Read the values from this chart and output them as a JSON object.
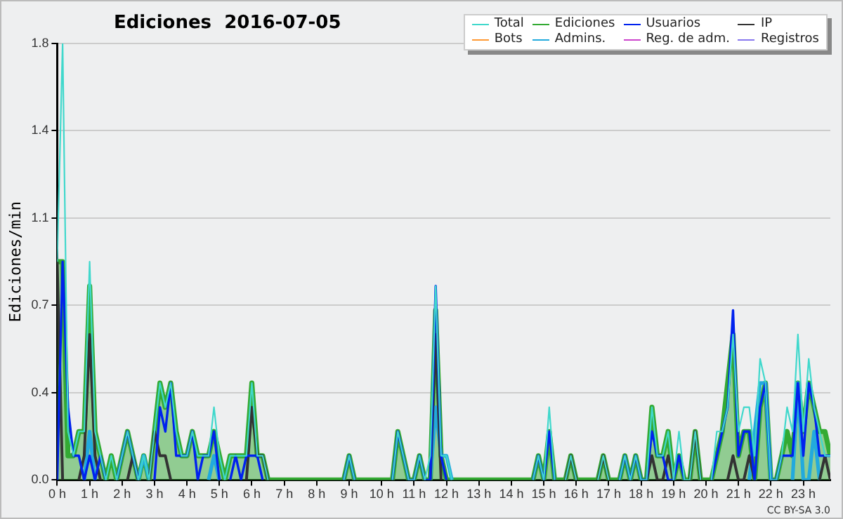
{
  "chart_data": {
    "type": "line",
    "title": "Ediciones  2016-07-05",
    "ylabel": "Ediciones/min",
    "annotations": [
      "CC BY-SA 3.0"
    ],
    "x": [
      0,
      0.167,
      0.333,
      0.5,
      0.667,
      0.833,
      1,
      1.167,
      1.333,
      1.5,
      1.667,
      1.833,
      2,
      2.167,
      2.333,
      2.5,
      2.667,
      2.833,
      3,
      3.167,
      3.333,
      3.5,
      3.667,
      3.833,
      4,
      4.167,
      4.333,
      4.5,
      4.667,
      4.833,
      5,
      5.167,
      5.333,
      5.5,
      5.667,
      5.833,
      6,
      6.167,
      6.333,
      6.5,
      6.667,
      6.833,
      7,
      7.167,
      7.333,
      7.5,
      7.667,
      7.833,
      8,
      8.167,
      8.333,
      8.5,
      8.667,
      8.833,
      9,
      9.167,
      9.333,
      9.5,
      9.667,
      9.833,
      10,
      10.167,
      10.333,
      10.5,
      10.667,
      10.833,
      11,
      11.167,
      11.333,
      11.5,
      11.667,
      11.833,
      12,
      12.167,
      12.333,
      12.5,
      12.667,
      12.833,
      13,
      13.167,
      13.333,
      13.5,
      13.667,
      13.833,
      14,
      14.167,
      14.333,
      14.5,
      14.667,
      14.833,
      15,
      15.167,
      15.333,
      15.5,
      15.667,
      15.833,
      16,
      16.167,
      16.333,
      16.5,
      16.667,
      16.833,
      17,
      17.167,
      17.333,
      17.5,
      17.667,
      17.833,
      18,
      18.167,
      18.333,
      18.5,
      18.667,
      18.833,
      19,
      19.167,
      19.333,
      19.5,
      19.667,
      19.833,
      20,
      20.167,
      20.333,
      20.5,
      20.667,
      20.833,
      21,
      21.167,
      21.333,
      21.5,
      21.667,
      21.833,
      22,
      22.167,
      22.333,
      22.5,
      22.667,
      22.833,
      23,
      23.167,
      23.333,
      23.5,
      23.667,
      23.833
    ],
    "series": [
      {
        "name": "Total",
        "color": "#40d8cc",
        "values": [
          0.9,
          1.8,
          0.2,
          0.1,
          0.2,
          0.2,
          0.9,
          0.2,
          0.1,
          0,
          0.1,
          0,
          0.1,
          0.2,
          0.1,
          0,
          0.1,
          0,
          0.2,
          0.4,
          0.3,
          0.4,
          0.2,
          0.1,
          0.1,
          0.2,
          0.1,
          0.1,
          0.1,
          0.3,
          0.1,
          0,
          0.1,
          0.1,
          0.1,
          0.1,
          0.4,
          0.1,
          0.1,
          0,
          null,
          null,
          null,
          null,
          null,
          null,
          null,
          null,
          null,
          null,
          null,
          null,
          null,
          0,
          0.1,
          0,
          null,
          null,
          null,
          null,
          null,
          null,
          0,
          0.2,
          0.1,
          0,
          0,
          0.1,
          0,
          0.1,
          0.8,
          0.1,
          0.1,
          0,
          null,
          null,
          null,
          null,
          null,
          null,
          null,
          null,
          null,
          null,
          null,
          null,
          null,
          null,
          0,
          0.1,
          0,
          0.3,
          0,
          null,
          0,
          0.1,
          0,
          null,
          null,
          null,
          0,
          0.1,
          0,
          null,
          0,
          0.1,
          0,
          0.1,
          0,
          0,
          0.3,
          0.1,
          0.1,
          0.2,
          0,
          0.2,
          0,
          0,
          0.2,
          0,
          null,
          0,
          0.2,
          0.2,
          0.3,
          0.6,
          0.2,
          0.3,
          0.3,
          0.1,
          0.5,
          0.4,
          0,
          0,
          0.1,
          0.3,
          0.2,
          0.6,
          0.2,
          0.5,
          0.3,
          0.2,
          0.1,
          0.1
        ]
      },
      {
        "name": "Ediciones",
        "type": "area",
        "color": "#33aa33",
        "values": [
          0.9,
          0.9,
          0.1,
          0.1,
          0.2,
          0.2,
          0.8,
          0.2,
          0.1,
          0,
          0.1,
          0,
          0.1,
          0.2,
          0.1,
          0,
          0.1,
          0,
          0.2,
          0.4,
          0.3,
          0.4,
          0.2,
          0.1,
          0.1,
          0.2,
          0.1,
          0.1,
          0.1,
          0.2,
          0.1,
          0,
          0.1,
          0.1,
          0.1,
          0.1,
          0.4,
          0.1,
          0.1,
          0,
          0,
          0,
          0,
          0,
          0,
          0,
          0,
          0,
          0,
          0,
          0,
          0,
          0,
          0,
          0.1,
          0,
          0,
          0,
          0,
          0,
          0,
          0,
          0,
          0.2,
          0.1,
          0,
          0,
          0.1,
          0,
          0,
          0.7,
          0.1,
          0,
          0,
          0,
          0,
          0,
          0,
          0,
          0,
          0,
          0,
          0,
          0,
          0,
          0,
          0,
          0,
          0,
          0.1,
          0,
          0.2,
          0,
          0,
          0,
          0.1,
          0,
          0,
          0,
          0,
          0,
          0.1,
          0,
          0,
          0,
          0.1,
          0,
          0.1,
          0,
          0,
          0.3,
          0.1,
          0.1,
          0.2,
          0,
          0.1,
          0,
          0,
          0.2,
          0,
          0,
          0,
          0.1,
          0.2,
          0.4,
          0.6,
          0.1,
          0.2,
          0.2,
          0,
          0.3,
          0.4,
          0,
          0,
          0.1,
          0.2,
          0.1,
          0.4,
          0.2,
          0.4,
          0.3,
          0.2,
          0.2,
          0.1
        ]
      },
      {
        "name": "Usuarios",
        "color": "#0022ee",
        "values": [
          0,
          0.9,
          0.3,
          0.1,
          0.1,
          0,
          0.1,
          0,
          0.1,
          0,
          null,
          0,
          0.1,
          0.2,
          0.1,
          0,
          null,
          null,
          0,
          0.3,
          0.2,
          0.4,
          0.1,
          0.1,
          0.1,
          0.2,
          0,
          0.1,
          0.1,
          0.2,
          0,
          null,
          0,
          0.1,
          0,
          0.1,
          0.1,
          0.1,
          0,
          null,
          null,
          null,
          null,
          null,
          null,
          null,
          null,
          null,
          null,
          null,
          null,
          null,
          null,
          0,
          0.1,
          0,
          null,
          null,
          null,
          null,
          null,
          null,
          0,
          0.2,
          0.1,
          0,
          0,
          0.1,
          0,
          0,
          0.8,
          0.1,
          0,
          null,
          null,
          null,
          null,
          null,
          null,
          null,
          null,
          null,
          null,
          null,
          null,
          null,
          null,
          null,
          0,
          0.1,
          0,
          0.2,
          0,
          null,
          null,
          null,
          null,
          null,
          null,
          null,
          null,
          null,
          null,
          null,
          0,
          0.1,
          0,
          0.1,
          0,
          0,
          0.2,
          0.1,
          0.1,
          0,
          0,
          0.1,
          0,
          null,
          null,
          null,
          null,
          0,
          0.1,
          0.2,
          0.3,
          0.7,
          0.1,
          0.2,
          0.2,
          0,
          0.3,
          0.4,
          0,
          0,
          0.1,
          0.1,
          0.1,
          0.4,
          0.1,
          0.4,
          0.3,
          0.1,
          0.1,
          0.1
        ]
      },
      {
        "name": "IP",
        "color": "#333333",
        "values": [
          0.9,
          0,
          null,
          null,
          0,
          0.1,
          0.6,
          0.1,
          0,
          null,
          null,
          null,
          null,
          0,
          0.1,
          0,
          null,
          0,
          0.2,
          0.1,
          0.1,
          0,
          null,
          null,
          null,
          null,
          null,
          null,
          null,
          null,
          null,
          null,
          null,
          null,
          null,
          0,
          0.3,
          0.1,
          0.1,
          0,
          null,
          null,
          null,
          null,
          null,
          null,
          null,
          null,
          null,
          null,
          null,
          null,
          null,
          null,
          null,
          null,
          null,
          null,
          null,
          null,
          null,
          null,
          null,
          null,
          null,
          null,
          null,
          null,
          null,
          0,
          0.6,
          0,
          null,
          null,
          null,
          null,
          null,
          null,
          null,
          null,
          null,
          null,
          null,
          null,
          null,
          null,
          null,
          null,
          null,
          null,
          null,
          null,
          null,
          null,
          0,
          0.1,
          0,
          null,
          null,
          null,
          0,
          0.1,
          0,
          null,
          null,
          null,
          null,
          null,
          null,
          0,
          0.1,
          0,
          0,
          0.1,
          0,
          null,
          null,
          0,
          0.2,
          0,
          null,
          null,
          null,
          null,
          0,
          0.1,
          0,
          0,
          0.1,
          0,
          null,
          null,
          null,
          null,
          null,
          null,
          null,
          null,
          null,
          null,
          null,
          0,
          0.1,
          0
        ]
      },
      {
        "name": "Bots",
        "color": "#ff9933",
        "values": [
          null,
          null,
          null,
          null,
          null,
          null,
          null,
          null,
          null,
          null,
          null,
          null,
          null,
          null,
          null,
          null,
          null,
          null,
          null,
          null,
          null,
          null,
          null,
          null,
          null,
          null,
          null,
          null,
          null,
          null,
          null,
          null,
          null,
          null,
          null,
          null,
          null,
          null,
          null,
          null,
          null,
          null,
          null,
          null,
          null,
          null,
          null,
          null,
          null,
          null,
          null,
          null,
          null,
          null,
          null,
          null,
          null,
          null,
          null,
          null,
          null,
          null,
          null,
          null,
          null,
          null,
          null,
          null,
          null,
          null,
          null,
          null,
          null,
          null,
          null,
          null,
          null,
          null,
          null,
          null,
          null,
          null,
          null,
          null,
          null,
          null,
          null,
          null,
          null,
          null,
          null,
          null,
          null,
          null,
          null,
          null,
          null,
          null,
          null,
          null,
          null,
          null,
          null,
          null,
          null,
          null,
          null,
          null,
          null,
          null,
          null,
          null,
          null,
          null,
          null,
          null,
          null,
          null,
          null,
          null,
          null,
          null,
          null,
          null,
          null,
          null,
          null,
          null,
          null,
          null,
          null,
          null,
          null,
          null,
          null,
          null,
          null,
          null,
          null,
          null,
          null,
          null,
          null,
          null
        ]
      },
      {
        "name": "Admins.",
        "color": "#22aadd",
        "values": [
          null,
          null,
          null,
          null,
          null,
          0,
          0.2,
          0,
          null,
          null,
          null,
          null,
          null,
          null,
          null,
          0,
          0.1,
          0,
          null,
          null,
          null,
          null,
          null,
          null,
          null,
          null,
          null,
          null,
          0,
          0.1,
          0,
          null,
          null,
          null,
          null,
          null,
          null,
          null,
          null,
          null,
          null,
          null,
          null,
          null,
          null,
          null,
          null,
          null,
          null,
          null,
          null,
          null,
          null,
          null,
          null,
          null,
          null,
          null,
          null,
          null,
          null,
          null,
          null,
          null,
          null,
          null,
          null,
          null,
          null,
          0,
          0.3,
          0.1,
          0.1,
          0,
          null,
          null,
          null,
          null,
          null,
          null,
          null,
          null,
          null,
          null,
          null,
          null,
          null,
          null,
          null,
          null,
          null,
          null,
          null,
          null,
          null,
          null,
          null,
          null,
          null,
          null,
          null,
          null,
          null,
          null,
          null,
          null,
          null,
          null,
          null,
          null,
          null,
          null,
          null,
          null,
          null,
          null,
          null,
          null,
          null,
          null,
          null,
          null,
          null,
          null,
          null,
          null,
          null,
          null,
          0,
          0.2,
          0.4,
          0.4,
          0,
          null,
          null,
          null,
          0,
          0.4,
          0,
          0,
          0.2,
          0,
          null,
          null
        ]
      },
      {
        "name": "Reg. de adm.",
        "color": "#cc44cc",
        "values": [
          null,
          null,
          null,
          null,
          null,
          null,
          null,
          null,
          null,
          null,
          null,
          null,
          null,
          null,
          null,
          null,
          null,
          null,
          null,
          null,
          null,
          null,
          null,
          null,
          null,
          null,
          null,
          null,
          null,
          null,
          null,
          null,
          null,
          null,
          null,
          null,
          null,
          null,
          null,
          null,
          null,
          null,
          null,
          null,
          null,
          null,
          null,
          null,
          null,
          null,
          null,
          null,
          null,
          null,
          null,
          null,
          null,
          null,
          null,
          null,
          null,
          null,
          null,
          null,
          null,
          null,
          null,
          null,
          null,
          null,
          null,
          null,
          null,
          null,
          null,
          null,
          null,
          null,
          null,
          null,
          null,
          null,
          null,
          null,
          null,
          null,
          null,
          null,
          null,
          null,
          null,
          null,
          null,
          null,
          null,
          null,
          null,
          null,
          null,
          null,
          null,
          null,
          null,
          null,
          null,
          null,
          null,
          null,
          null,
          null,
          null,
          null,
          null,
          null,
          null,
          null,
          null,
          null,
          null,
          null,
          null,
          null,
          null,
          null,
          null,
          null,
          null,
          null,
          null,
          null,
          null,
          null,
          null,
          null,
          null,
          null,
          null,
          null,
          null,
          null,
          null,
          null,
          null,
          null
        ]
      },
      {
        "name": "Registros",
        "color": "#8877ee",
        "values": [
          null,
          null,
          null,
          null,
          null,
          null,
          null,
          null,
          null,
          null,
          null,
          null,
          null,
          null,
          null,
          null,
          null,
          null,
          null,
          null,
          null,
          null,
          null,
          null,
          null,
          null,
          null,
          null,
          null,
          null,
          null,
          null,
          null,
          null,
          null,
          null,
          null,
          null,
          null,
          null,
          null,
          null,
          null,
          null,
          null,
          null,
          null,
          null,
          null,
          null,
          null,
          null,
          null,
          null,
          null,
          null,
          null,
          null,
          null,
          null,
          null,
          null,
          null,
          null,
          null,
          null,
          null,
          null,
          null,
          null,
          null,
          null,
          null,
          null,
          null,
          null,
          null,
          null,
          null,
          null,
          null,
          null,
          null,
          null,
          null,
          null,
          null,
          null,
          null,
          null,
          null,
          null,
          null,
          null,
          null,
          null,
          null,
          null,
          null,
          null,
          null,
          null,
          null,
          null,
          null,
          null,
          null,
          null,
          null,
          null,
          null,
          null,
          null,
          null,
          null,
          null,
          null,
          null,
          null,
          null,
          null,
          null,
          null,
          null,
          null,
          null,
          null,
          null,
          null,
          null,
          null,
          null,
          null,
          null,
          null,
          null,
          null,
          null,
          null,
          null,
          null,
          null,
          null,
          null
        ]
      }
    ],
    "xlim": [
      0,
      23.833
    ],
    "xticks": [
      {
        "value": 0,
        "label": "0 h"
      },
      {
        "value": 1,
        "label": "1 h"
      },
      {
        "value": 2,
        "label": "2 h"
      },
      {
        "value": 3,
        "label": "3 h"
      },
      {
        "value": 4,
        "label": "4 h"
      },
      {
        "value": 5,
        "label": "5 h"
      },
      {
        "value": 6,
        "label": "6 h"
      },
      {
        "value": 7,
        "label": "7 h"
      },
      {
        "value": 8,
        "label": "8 h"
      },
      {
        "value": 9,
        "label": "9 h"
      },
      {
        "value": 10,
        "label": "10 h"
      },
      {
        "value": 11,
        "label": "11 h"
      },
      {
        "value": 12,
        "label": "12 h"
      },
      {
        "value": 13,
        "label": "13 h"
      },
      {
        "value": 14,
        "label": "14 h"
      },
      {
        "value": 15,
        "label": "15 h"
      },
      {
        "value": 16,
        "label": "16 h"
      },
      {
        "value": 17,
        "label": "17 h"
      },
      {
        "value": 18,
        "label": "18 h"
      },
      {
        "value": 19,
        "label": "19 h"
      },
      {
        "value": 20,
        "label": "20 h"
      },
      {
        "value": 21,
        "label": "21 h"
      },
      {
        "value": 22,
        "label": "22 h"
      },
      {
        "value": 23,
        "label": "23 h"
      }
    ],
    "ylim": [
      0,
      1.8
    ],
    "yticks": [
      {
        "value": 0,
        "label": "0.0"
      },
      {
        "value": 0.36,
        "label": "0.4"
      },
      {
        "value": 0.72,
        "label": "0.7"
      },
      {
        "value": 1.08,
        "label": "1.1"
      },
      {
        "value": 1.44,
        "label": "1.4"
      },
      {
        "value": 1.8,
        "label": "1.8"
      }
    ],
    "grid": "y",
    "legend": "top right",
    "marker": "none",
    "line_style": "solid"
  }
}
